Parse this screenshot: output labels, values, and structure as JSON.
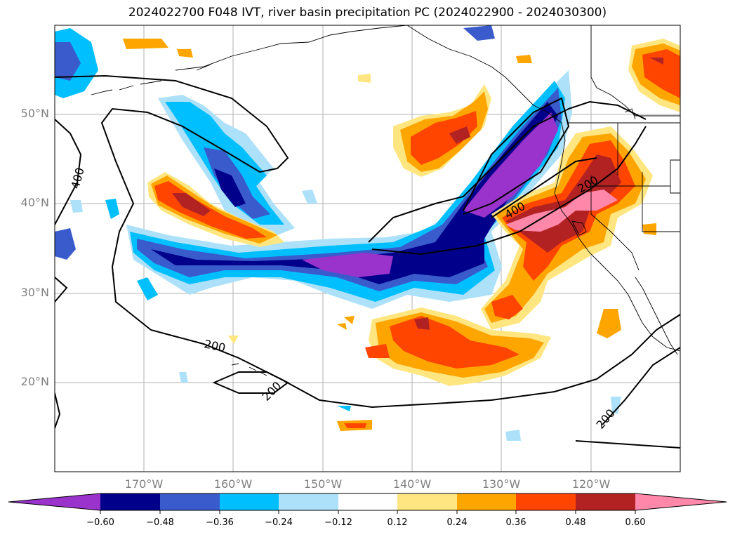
{
  "title": "2024022700 F048 IVT, river basin precipitation PC (2024022900 - 2024030300)",
  "lat_labels": [
    "50°N",
    "40°N",
    "30°N",
    "20°N"
  ],
  "lon_labels": [
    "170°W",
    "160°W",
    "150°W",
    "140°W",
    "130°W",
    "120°W"
  ],
  "contour_labels": [
    "400",
    "400",
    "200",
    "200",
    "200",
    "200"
  ],
  "colorbar": {
    "colors": [
      "#9933CC",
      "#00008B",
      "#3A5BCC",
      "#00BFFF",
      "#ADE1FA",
      "#FFFFFF",
      "#FFE680",
      "#FFA500",
      "#FF4500",
      "#B22222",
      "#FF88AA"
    ],
    "ticks": [
      "−0.60",
      "−0.48",
      "−0.36",
      "−0.24",
      "−0.12",
      "0.12",
      "0.24",
      "0.36",
      "0.48",
      "0.60"
    ]
  }
}
